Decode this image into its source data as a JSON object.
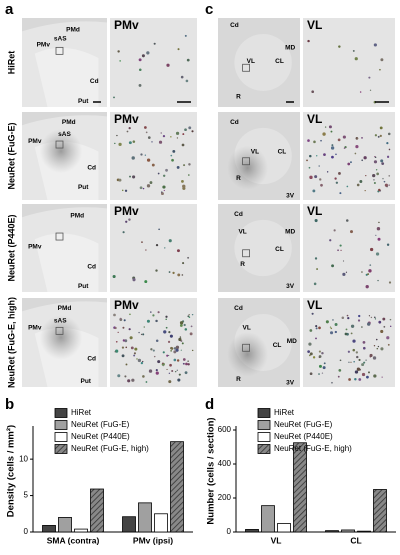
{
  "panels": [
    {
      "label": "a",
      "rows": [
        {
          "name": "HiRet",
          "overview_labels": [
            "PMd",
            "PMv",
            "sAS",
            "Cd",
            "Put"
          ],
          "zoom_label": "PMv"
        },
        {
          "name": "NeuRet (FuG-E)",
          "overview_labels": [
            "PMd",
            "sAS",
            "PMv",
            "Cd",
            "Put"
          ],
          "zoom_label": "PMv"
        },
        {
          "name": "NeuRet (P440E)",
          "overview_labels": [
            "PMd",
            "PMv",
            "Cd",
            "Put"
          ],
          "zoom_label": "PMv"
        },
        {
          "name": "NeuRet (FuG-E, high)",
          "overview_labels": [
            "PMd",
            "sAS",
            "PMv",
            "Cd",
            "Put"
          ],
          "zoom_label": "PMv"
        }
      ]
    },
    {
      "label": "c",
      "rows": [
        {
          "overview_labels": [
            "Cd",
            "MD",
            "VL",
            "CL",
            "R"
          ],
          "zoom_label": "VL"
        },
        {
          "overview_labels": [
            "Cd",
            "VL",
            "CL",
            "R",
            "3V"
          ],
          "zoom_label": "VL"
        },
        {
          "overview_labels": [
            "Cd",
            "VL",
            "MD",
            "CL",
            "R",
            "3V"
          ],
          "zoom_label": "VL"
        },
        {
          "overview_labels": [
            "Cd",
            "VL",
            "MD",
            "CL",
            "R",
            "3V"
          ],
          "zoom_label": "VL"
        }
      ]
    }
  ],
  "chart_data": [
    {
      "type": "bar",
      "label": "b",
      "y_label": "Density (cells / mm²)",
      "categories": [
        "SMA (contra)",
        "PMv (ipsi)"
      ],
      "series": [
        {
          "name": "HiRet",
          "color": "#444444",
          "values": [
            0.9,
            2.1
          ]
        },
        {
          "name": "NeuRet (FuG-E)",
          "color": "#a0a0a0",
          "values": [
            2.0,
            4.0
          ]
        },
        {
          "name": "NeuRet (P440E)",
          "color": "#ffffff",
          "values": [
            0.4,
            2.5
          ]
        },
        {
          "name": "NeuRet (FuG-E, high)",
          "color": "#888888",
          "pattern": "hatch",
          "values": [
            5.9,
            12.4
          ]
        }
      ],
      "ylim": [
        0,
        14
      ],
      "yticks": [
        0,
        5,
        10
      ]
    },
    {
      "type": "bar",
      "label": "d",
      "y_label": "Number (cells / section)",
      "categories": [
        "VL",
        "CL"
      ],
      "series": [
        {
          "name": "HiRet",
          "color": "#444444",
          "values": [
            15,
            8
          ]
        },
        {
          "name": "NeuRet (FuG-E)",
          "color": "#a0a0a0",
          "values": [
            155,
            12
          ]
        },
        {
          "name": "NeuRet (P440E)",
          "color": "#ffffff",
          "values": [
            50,
            5
          ]
        },
        {
          "name": "NeuRet (FuG-E, high)",
          "color": "#888888",
          "pattern": "hatch",
          "values": [
            525,
            250
          ]
        }
      ],
      "ylim": [
        0,
        600
      ],
      "yticks": [
        0,
        200,
        400,
        600
      ]
    }
  ]
}
